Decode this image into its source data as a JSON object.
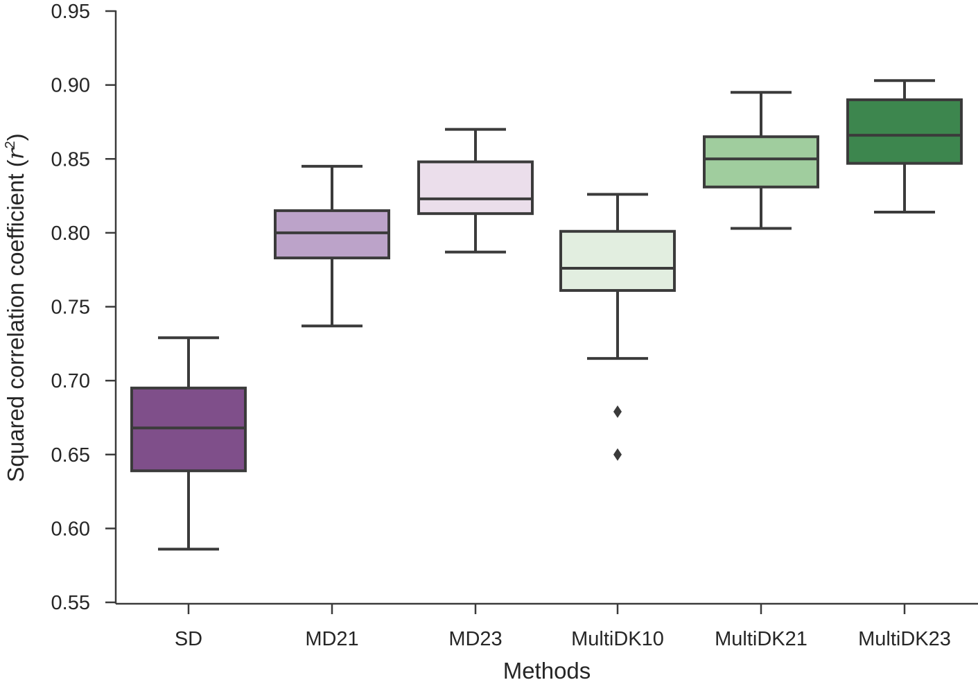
{
  "chart_data": {
    "type": "box",
    "title": "",
    "xlabel": "Methods",
    "ylabel": "Squared correlation coefficient (",
    "ylabel_math": "r",
    "ylabel_math_sup": "2",
    "ylabel_close": ")",
    "ylim": [
      0.55,
      0.95
    ],
    "yticks": [
      0.55,
      0.6,
      0.65,
      0.7,
      0.75,
      0.8,
      0.85,
      0.9,
      0.95
    ],
    "ytick_labels": [
      "0.55",
      "0.60",
      "0.65",
      "0.70",
      "0.75",
      "0.80",
      "0.85",
      "0.90",
      "0.95"
    ],
    "grid": false,
    "categories": [
      "SD",
      "MD21",
      "MD23",
      "MultiDK10",
      "MultiDK21",
      "MultiDK23"
    ],
    "boxes": [
      {
        "name": "SD",
        "whisker_low": 0.586,
        "q1": 0.639,
        "median": 0.668,
        "q3": 0.695,
        "whisker_high": 0.729,
        "outliers": [],
        "color": "#7f4f8a"
      },
      {
        "name": "MD21",
        "whisker_low": 0.737,
        "q1": 0.783,
        "median": 0.8,
        "q3": 0.815,
        "whisker_high": 0.845,
        "outliers": [],
        "color": "#bca3c9"
      },
      {
        "name": "MD23",
        "whisker_low": 0.787,
        "q1": 0.813,
        "median": 0.823,
        "q3": 0.848,
        "whisker_high": 0.87,
        "outliers": [],
        "color": "#ebdeeb"
      },
      {
        "name": "MultiDK10",
        "whisker_low": 0.715,
        "q1": 0.761,
        "median": 0.776,
        "q3": 0.801,
        "whisker_high": 0.826,
        "outliers": [
          0.679,
          0.65
        ],
        "color": "#e2eee0"
      },
      {
        "name": "MultiDK21",
        "whisker_low": 0.803,
        "q1": 0.831,
        "median": 0.85,
        "q3": 0.865,
        "whisker_high": 0.895,
        "outliers": [],
        "color": "#a0cd9e"
      },
      {
        "name": "MultiDK23",
        "whisker_low": 0.814,
        "q1": 0.847,
        "median": 0.866,
        "q3": 0.89,
        "whisker_high": 0.903,
        "outliers": [],
        "color": "#3d864e"
      }
    ],
    "line_color": "#3b3b3b"
  }
}
